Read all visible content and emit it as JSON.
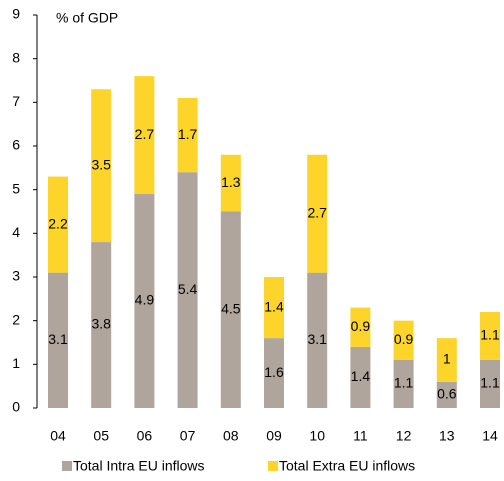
{
  "chart_data": {
    "type": "stacked_bar",
    "title": "% of GDP",
    "categories": [
      "04",
      "05",
      "06",
      "07",
      "08",
      "09",
      "10",
      "11",
      "12",
      "13",
      "14"
    ],
    "series": [
      {
        "name": "Total Intra EU inflows",
        "color": "#b0a59d",
        "values": [
          3.1,
          3.8,
          4.9,
          5.4,
          4.5,
          1.6,
          3.1,
          1.4,
          1.1,
          0.6,
          1.1
        ]
      },
      {
        "name": "Total Extra EU inflows",
        "color": "#fdd52a",
        "values": [
          2.2,
          3.5,
          2.7,
          1.7,
          1.3,
          1.4,
          2.7,
          0.9,
          0.9,
          1.0,
          1.1
        ]
      }
    ],
    "ylim": [
      0,
      9
    ],
    "yticks": [
      0,
      1,
      2,
      3,
      4,
      5,
      6,
      7,
      8,
      9
    ],
    "legend": "bottom"
  }
}
